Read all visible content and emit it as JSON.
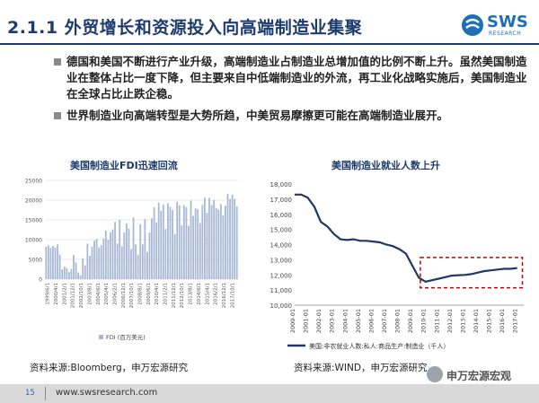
{
  "header": {
    "title": "2.1.1 外贸增长和资源投入向高端制造业集聚",
    "logo": {
      "text": "SWS",
      "sub": "RESEARCH",
      "icon": "sws-logo-icon"
    }
  },
  "bullets": [
    "德国和美国不断进行产业升级，高端制造业占制造业总增加值的比例不断上升。虽然美国制造业在整体占比一度下降，但主要来自中低端制造业的外流，再工业化战略实施后，美国制造业在全球占比止跌企稳。",
    "世界制造业向高端转型是大势所趋，中美贸易摩擦更可能在高端制造业展开。"
  ],
  "colors": {
    "navy": "#1d3b6e",
    "bar": "#a7b9d4",
    "line": "#1f3864",
    "highlight": "#c00000",
    "bullet": "#8a8a8a"
  },
  "chart_data": [
    {
      "type": "bar",
      "title": "美国制造业FDI迅速回流",
      "legend": "FDI (百万美元)",
      "legend_position": "bottom",
      "ylim": [
        0,
        25000
      ],
      "yticks": [
        0,
        5000,
        10000,
        15000,
        20000,
        25000
      ],
      "grid": true,
      "xtick_labels": [
        "1999/6/1",
        "2000/4/1",
        "2001/2/1",
        "2001/12/1",
        "2002/10/1",
        "2003/8/1",
        "2004/6/1",
        "2005/4/1",
        "2006/2/1",
        "2006/12/1",
        "2007/10/1",
        "2008/8/1",
        "2009/6/1",
        "2010/4/1",
        "2011/2/1",
        "2011/12/1",
        "2012/10/1",
        "2013/8/1",
        "2014/6/1",
        "2015/4/1",
        "2016/2/1",
        "2016/12/1",
        "2017/10/1"
      ],
      "values": [
        8200,
        8600,
        7900,
        8400,
        8000,
        8800,
        6200,
        2500,
        3200,
        2800,
        1800,
        2600,
        6100,
        4200,
        1700,
        1000,
        5300,
        3500,
        9000,
        5900,
        8200,
        9700,
        10200,
        8000,
        8600,
        10300,
        12300,
        10000,
        11900,
        12600,
        14500,
        9000,
        15000,
        8300,
        11800,
        14100,
        12800,
        7600,
        15600,
        8800,
        6200,
        13900,
        8800,
        15200,
        6900,
        11800,
        15400,
        18200,
        14400,
        19400,
        17300,
        18900,
        12700,
        19200,
        18300,
        17500,
        11400,
        19600,
        18700,
        13600,
        18700,
        18200,
        13500,
        19900,
        16000,
        18000,
        17700,
        14200,
        18800,
        20600,
        16800,
        20600,
        18800,
        20000,
        18000,
        17600,
        19000,
        16200,
        18600,
        21600,
        20300,
        21400,
        20300,
        18400
      ]
    },
    {
      "type": "line",
      "title": "美国制造业就业人数上升",
      "legend": "美国:非农就业人数:私人:商品生产:制造业（千人）",
      "legend_position": "bottom",
      "ylim": [
        10000,
        18000
      ],
      "yticks": [
        10000,
        11000,
        12000,
        13000,
        14000,
        15000,
        16000,
        17000,
        18000
      ],
      "ytick_labels": [
        "10,000",
        "11,000",
        "12,000",
        "13,000",
        "14,000",
        "15,000",
        "16,000",
        "17,000",
        "18,000"
      ],
      "xtick_labels": [
        "2000-01",
        "2001-01",
        "2002-01",
        "2003-01",
        "2004-01",
        "2005-01",
        "2006-01",
        "2007-01",
        "2008-01",
        "2009-01",
        "2010-01",
        "2011-01",
        "2012-01",
        "2013-01",
        "2014-01",
        "2015-01",
        "2016-01",
        "2017-01"
      ],
      "x": [
        2000.0,
        2000.5,
        2001.0,
        2001.5,
        2002.0,
        2002.5,
        2003.0,
        2003.5,
        2004.0,
        2004.5,
        2005.0,
        2005.5,
        2006.0,
        2006.5,
        2007.0,
        2007.5,
        2008.0,
        2008.5,
        2009.0,
        2009.5,
        2010.0,
        2010.5,
        2011.0,
        2011.5,
        2012.0,
        2012.5,
        2013.0,
        2013.5,
        2014.0,
        2014.5,
        2015.0,
        2015.5,
        2016.0,
        2016.5,
        2017.0
      ],
      "values": [
        17300,
        17300,
        17100,
        16500,
        15500,
        15200,
        14700,
        14350,
        14300,
        14350,
        14250,
        14250,
        14200,
        14150,
        14000,
        13900,
        13700,
        13400,
        12600,
        11800,
        11550,
        11650,
        11750,
        11850,
        11950,
        11980,
        12000,
        12050,
        12150,
        12250,
        12300,
        12350,
        12400,
        12400,
        12450
      ],
      "highlight_range": {
        "x": [
          2009.6,
          2017.4
        ],
        "y": [
          11150,
          13150
        ]
      }
    }
  ],
  "sources": {
    "left": "资料来源:Bloomberg，申万宏源研究",
    "right": "资料来源:WIND，申万宏源研究"
  },
  "footer": {
    "page": "15",
    "url": "www.swsresearch.com"
  },
  "watermark": {
    "text": "申万宏源宏观",
    "icon": "wechat-icon"
  }
}
